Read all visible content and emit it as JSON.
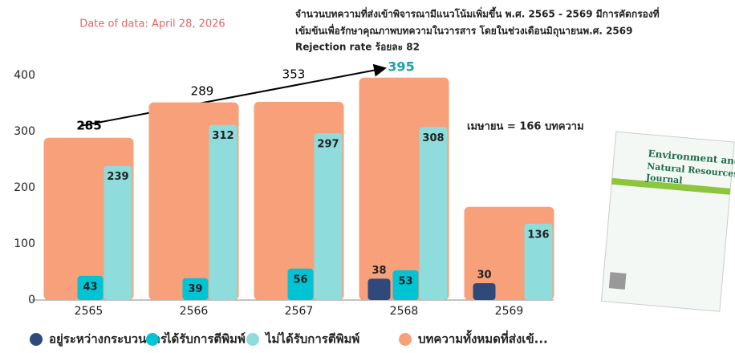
{
  "chart_data": {
    "type": "bar",
    "date_note": "Date of data: April 28, 2026",
    "title_lines": [
      "จำนวนบทความที่ส่งเข้าพิจารณามีแนวโน้มเพิ่มขึ้น พ.ศ. 2565 - 2569 มีการคัดกรองที่",
      "เข้มข้นเพื่อรักษาคุณภาพบทความในวารสาร  โดยในช่วงเดือนมิถุนายนพ.ศ. 2569",
      "Rejection rate ร้อยละ 82"
    ],
    "annotations": [
      285,
      289,
      353,
      395
    ],
    "note": "เมษายน  = 166 บทความ",
    "categories": [
      "2565",
      "2566",
      "2567",
      "2568",
      "2569"
    ],
    "series": [
      {
        "name": "อยู่ระหว่างกระบวนการ",
        "color": "#2d4a7a",
        "values": [
          null,
          null,
          null,
          38,
          30
        ]
      },
      {
        "name": "ได้รับการตีพิมพ์",
        "color": "#00c4d4",
        "values": [
          43,
          39,
          56,
          53,
          null
        ]
      },
      {
        "name": "ไม่ได้รับการตีพิมพ์",
        "color": "#8fdcdc",
        "values": [
          239,
          312,
          297,
          308,
          136
        ]
      },
      {
        "name": "บทความทั้งหมดที่ส่งเข้...",
        "color": "#f7a07a",
        "values": [
          289,
          352,
          353,
          396,
          166
        ]
      }
    ],
    "labeled_series": [
      0,
      1,
      2
    ],
    "ylim": [
      0,
      400
    ],
    "yticks": [
      0,
      100,
      200,
      300,
      400
    ],
    "grid": false,
    "cover_texts": [
      "Environment and",
      "Natural Resources",
      "Journal"
    ]
  }
}
